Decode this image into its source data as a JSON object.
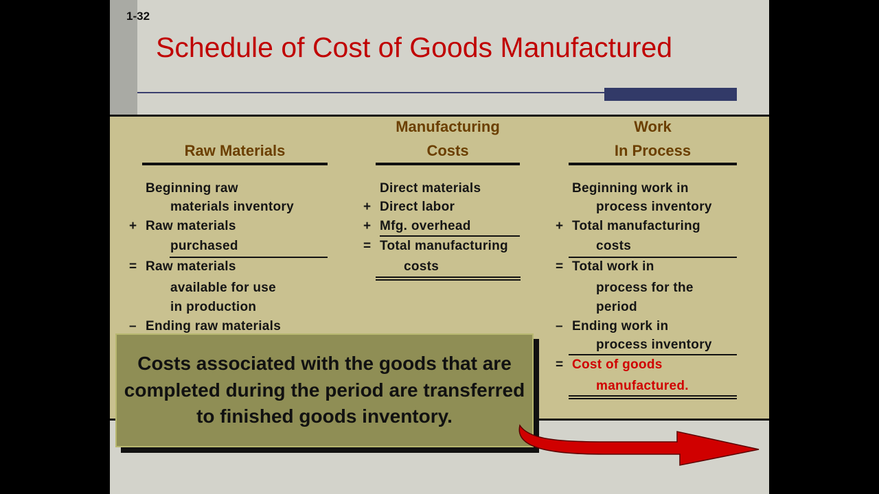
{
  "slide_number": "1-32",
  "title": "Schedule of Cost of Goods Manufactured",
  "columns": {
    "raw": {
      "header": "Raw Materials",
      "lines": [
        "Beginning raw",
        "materials inventory",
        "+",
        "Raw materials",
        "purchased",
        "=",
        "Raw materials",
        "available for use",
        "in production",
        "–",
        "Ending raw materials"
      ]
    },
    "mfg": {
      "header1": "Manufacturing",
      "header2": "Costs",
      "lines": [
        "Direct materials",
        "+",
        "Direct labor",
        "+",
        "Mfg. overhead",
        "=",
        "Total manufacturing",
        "costs"
      ]
    },
    "wip": {
      "header1": "Work",
      "header2": "In Process",
      "lines": [
        "Beginning work in",
        "process inventory",
        "+",
        "Total manufacturing",
        "costs",
        "=",
        "Total work in",
        "process for the",
        "period",
        "–",
        "Ending work in",
        "process inventory",
        "=",
        "Cost of goods",
        "manufactured."
      ]
    }
  },
  "callout": "Costs associated with the goods that are completed during the period are transferred to finished goods inventory.",
  "colors": {
    "title": "#c00000",
    "header": "#6b3f00",
    "panel": "#c9c190",
    "callout": "#8f8e55",
    "arrow": "#d00000"
  }
}
